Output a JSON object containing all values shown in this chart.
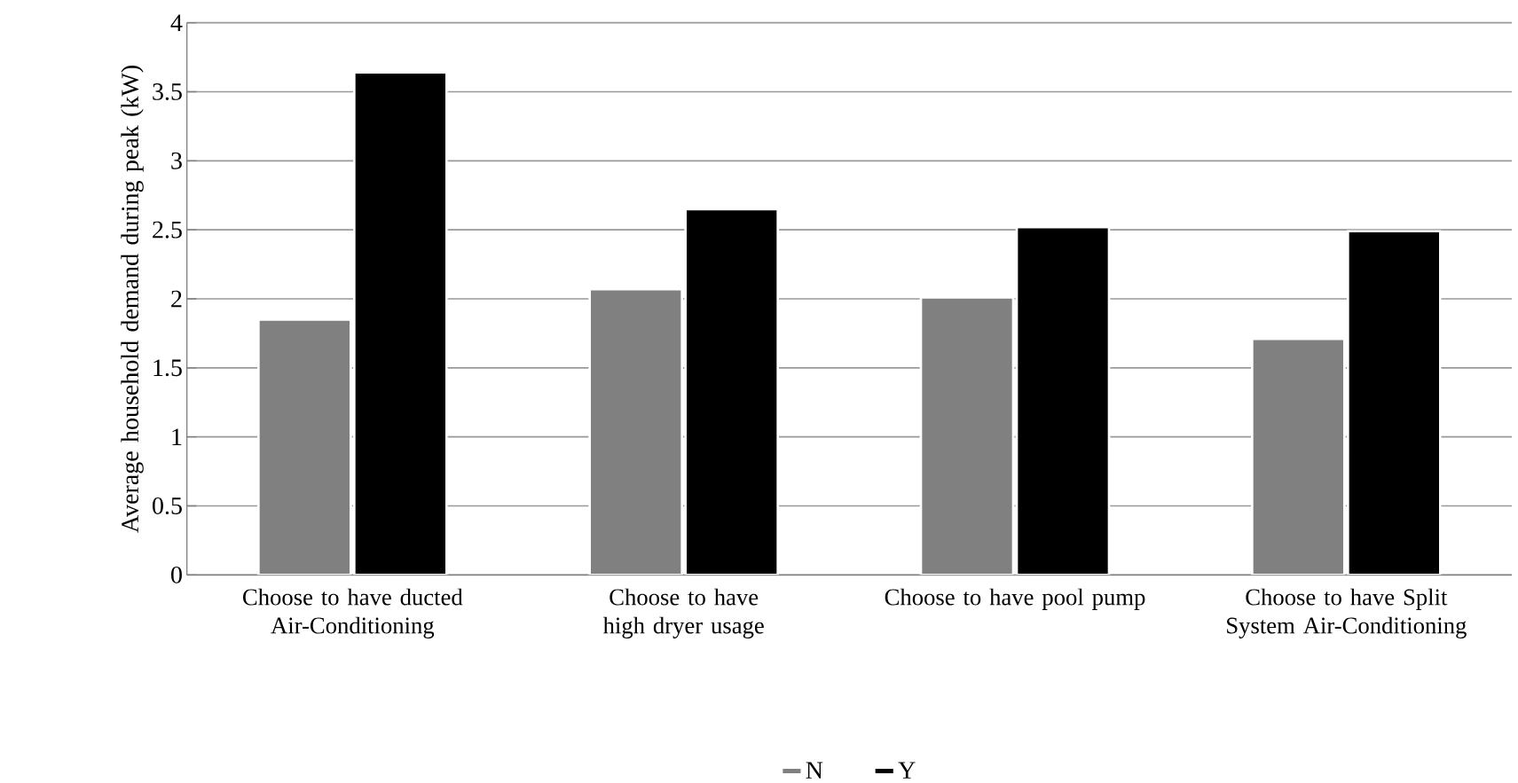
{
  "chart_data": {
    "type": "bar",
    "ylabel": "Average household demand during peak (kW)",
    "categories": [
      "Choose to have ducted Air-Conditioning",
      "Choose to have high dryer usage",
      "Choose to have pool pump",
      "Choose to have Split System Air-Conditioning"
    ],
    "series": [
      {
        "name": "N",
        "color": "#808080",
        "values": [
          1.85,
          2.07,
          2.01,
          1.71
        ]
      },
      {
        "name": "Y",
        "color": "#000000",
        "values": [
          3.64,
          2.65,
          2.52,
          2.49
        ]
      }
    ],
    "ylim": [
      0,
      4
    ],
    "yticks": [
      0,
      0.5,
      1,
      1.5,
      2,
      2.5,
      3,
      3.5,
      4
    ],
    "grid": "y",
    "legend": "bottom"
  }
}
